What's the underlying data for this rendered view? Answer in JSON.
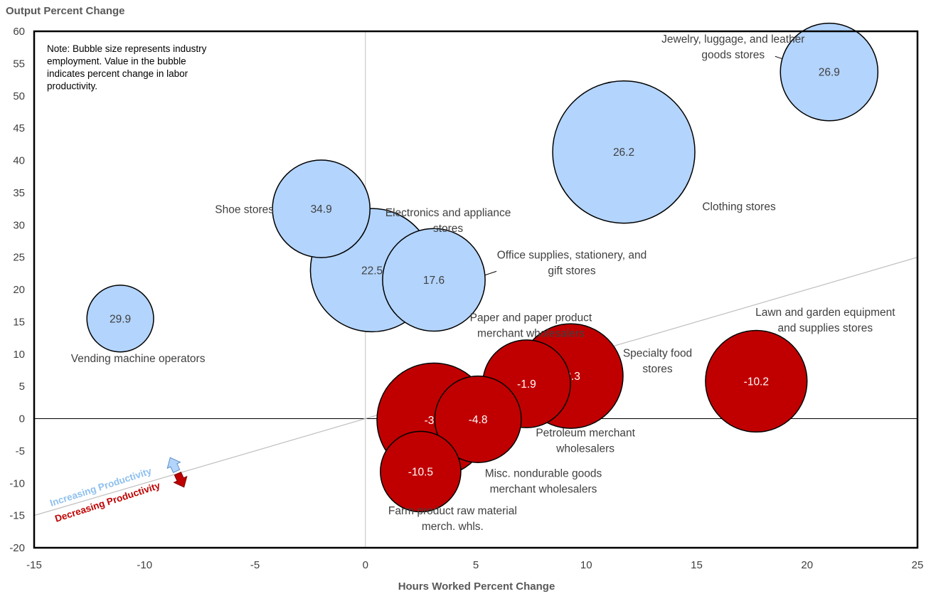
{
  "chart_data": {
    "type": "scatter",
    "xlabel": "Hours Worked Percent Change",
    "ylabel": "Output Percent Change",
    "xlim": [
      -15,
      25
    ],
    "ylim": [
      -20,
      60
    ],
    "xticks": [
      -15,
      -10,
      -5,
      0,
      5,
      10,
      15,
      20,
      25
    ],
    "yticks": [
      -20,
      -15,
      -10,
      -5,
      0,
      5,
      10,
      15,
      20,
      25,
      30,
      35,
      40,
      45,
      50,
      55,
      60
    ],
    "note": [
      "Note: Bubble size represents industry",
      "employment. Value in the bubble",
      "indicates percent change in labor",
      "productivity."
    ],
    "reference_line": {
      "from": [
        -15,
        -15
      ],
      "to": [
        25,
        25
      ]
    },
    "productivity_labels": {
      "increasing": "Increasing Productivity",
      "decreasing": "Decreasing Productivity"
    },
    "colors": {
      "increase": "#b3d4fc",
      "decrease": "#c00000",
      "increase_text": "#404040",
      "decrease_text": "#ffffff",
      "increasing_label": "#8ec0ee"
    },
    "points": [
      {
        "name": [
          "Clothing stores"
        ],
        "x": 11.7,
        "y": 41.3,
        "productivity": 26.2,
        "size": 100
      },
      {
        "name": [
          "Electronics and appliance",
          "stores"
        ],
        "x": 0.3,
        "y": 23.0,
        "productivity": 22.5,
        "size": 75
      },
      {
        "name": [
          "Office supplies, stationery, and",
          "gift stores"
        ],
        "x": 3.1,
        "y": 21.5,
        "productivity": 17.6,
        "size": 52
      },
      {
        "name": [
          "Shoe stores"
        ],
        "x": -2.0,
        "y": 32.5,
        "productivity": 34.9,
        "size": 47
      },
      {
        "name": [
          "Jewelry, luggage, and leather",
          "goods stores"
        ],
        "x": 21.0,
        "y": 53.7,
        "productivity": 26.9,
        "size": 47
      },
      {
        "name": [
          "Vending machine operators"
        ],
        "x": -11.1,
        "y": 15.5,
        "productivity": 29.9,
        "size": 22
      },
      {
        "name": [
          "Misc. nondurable goods",
          "merchant wholesalers"
        ],
        "x": 3.1,
        "y": -0.2,
        "productivity": -3.5,
        "size": 64
      },
      {
        "name": [
          "Specialty food",
          "stores"
        ],
        "x": 9.3,
        "y": 6.6,
        "productivity": -2.3,
        "size": 54
      },
      {
        "name": [
          "Lawn and garden equipment",
          "and supplies stores"
        ],
        "x": 17.7,
        "y": 5.8,
        "productivity": -10.2,
        "size": 51
      },
      {
        "name": [
          "Paper and paper product",
          "merchant wholesalers"
        ],
        "x": 7.3,
        "y": 5.4,
        "productivity": -1.9,
        "size": 38
      },
      {
        "name": [
          "Petroleum merchant",
          "wholesalers"
        ],
        "x": 5.1,
        "y": -0.1,
        "productivity": -4.8,
        "size": 37
      },
      {
        "name": [
          "Farm product raw material",
          "merch. whls."
        ],
        "x": 2.5,
        "y": -8.2,
        "productivity": -10.5,
        "size": 32
      }
    ]
  }
}
